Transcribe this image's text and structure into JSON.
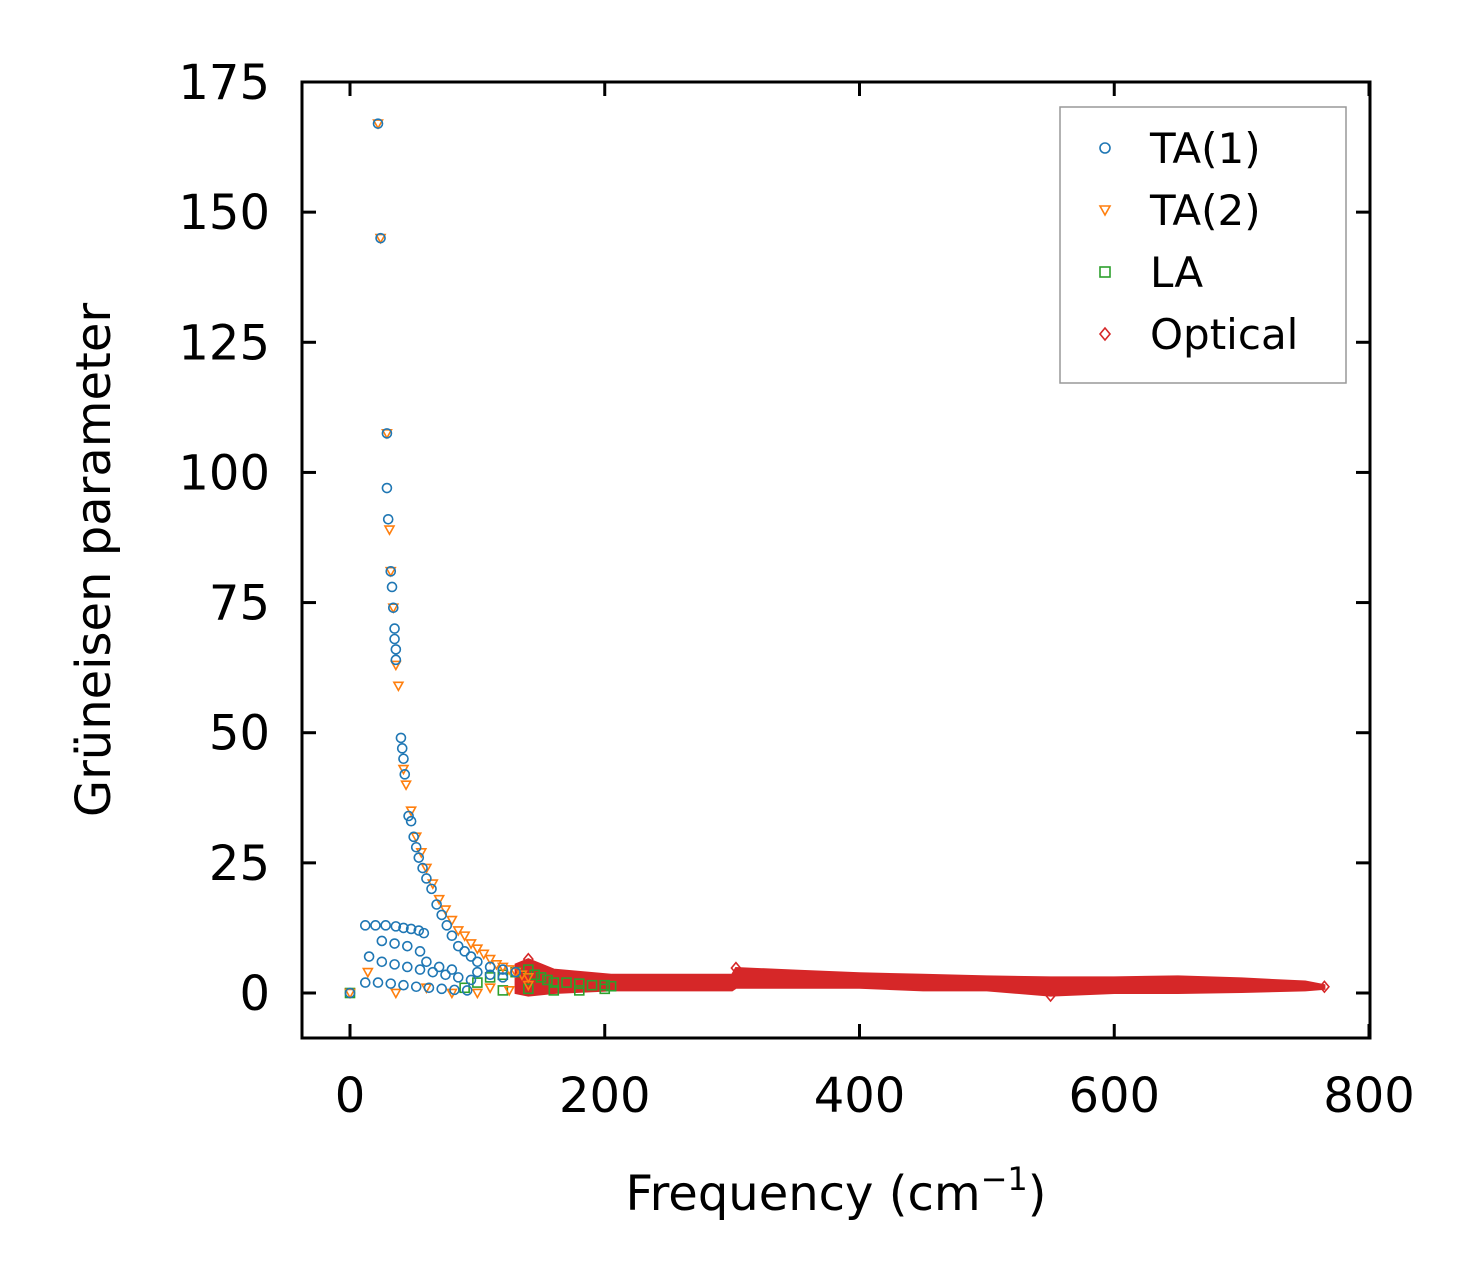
{
  "chart_data": {
    "type": "scatter",
    "title": "",
    "xlabel": "Frequency (cm",
    "xlabel_sup": "−1",
    "xlabel_end": ")",
    "ylabel": "Grüneisen parameter",
    "xlim": [
      -10,
      800
    ],
    "ylim": [
      -8.5,
      175
    ],
    "x_ticks": [
      0,
      200,
      400,
      600,
      800
    ],
    "y_ticks": [
      0,
      25,
      50,
      75,
      100,
      125,
      150,
      175
    ],
    "x_tick_labels": [
      "0",
      "200",
      "400",
      "600",
      "800"
    ],
    "y_tick_labels": [
      "0",
      "25",
      "50",
      "75",
      "100",
      "125",
      "150",
      "175"
    ],
    "grid": false,
    "legend_position": "top-right",
    "series": [
      {
        "name": "TA(1)",
        "marker": "circle",
        "color": "#1f77b4",
        "points": [
          [
            0,
            0
          ],
          [
            22,
            167
          ],
          [
            24,
            145
          ],
          [
            29,
            107.5
          ],
          [
            29,
            97
          ],
          [
            30,
            91
          ],
          [
            32,
            81
          ],
          [
            33,
            78
          ],
          [
            34,
            74
          ],
          [
            35,
            70
          ],
          [
            35,
            68
          ],
          [
            36,
            66
          ],
          [
            36,
            64
          ],
          [
            40,
            49
          ],
          [
            41,
            47
          ],
          [
            42,
            45
          ],
          [
            43,
            42
          ],
          [
            46,
            34
          ],
          [
            48,
            33
          ],
          [
            50,
            30
          ],
          [
            52,
            28
          ],
          [
            54,
            26
          ],
          [
            57,
            24
          ],
          [
            60,
            22
          ],
          [
            64,
            20
          ],
          [
            68,
            17
          ],
          [
            72,
            15
          ],
          [
            76,
            13
          ],
          [
            80,
            11
          ],
          [
            85,
            9
          ],
          [
            90,
            8
          ],
          [
            95,
            7
          ],
          [
            100,
            6
          ],
          [
            110,
            5
          ],
          [
            120,
            4.5
          ],
          [
            130,
            4
          ],
          [
            12,
            13
          ],
          [
            20,
            13
          ],
          [
            28,
            13
          ],
          [
            36,
            12.8
          ],
          [
            42,
            12.5
          ],
          [
            48,
            12.3
          ],
          [
            54,
            12
          ],
          [
            58,
            11.5
          ],
          [
            25,
            10
          ],
          [
            35,
            9.5
          ],
          [
            45,
            9
          ],
          [
            55,
            8
          ],
          [
            15,
            7
          ],
          [
            25,
            6
          ],
          [
            35,
            5.5
          ],
          [
            45,
            5
          ],
          [
            55,
            4.5
          ],
          [
            65,
            4
          ],
          [
            75,
            3.5
          ],
          [
            85,
            3
          ],
          [
            95,
            2.5
          ],
          [
            12,
            2
          ],
          [
            22,
            2
          ],
          [
            32,
            1.8
          ],
          [
            42,
            1.5
          ],
          [
            52,
            1.2
          ],
          [
            62,
            1
          ],
          [
            72,
            0.8
          ],
          [
            82,
            0.6
          ],
          [
            92,
            0.5
          ],
          [
            60,
            6
          ],
          [
            70,
            5
          ],
          [
            80,
            4.5
          ],
          [
            100,
            4
          ],
          [
            110,
            3.5
          ],
          [
            120,
            3
          ]
        ]
      },
      {
        "name": "TA(2)",
        "marker": "triangle-down",
        "color": "#ff7f0e",
        "points": [
          [
            0,
            0
          ],
          [
            22,
            167
          ],
          [
            24,
            145
          ],
          [
            29,
            107.5
          ],
          [
            31,
            89
          ],
          [
            32,
            81
          ],
          [
            34,
            74
          ],
          [
            36,
            63
          ],
          [
            38,
            59
          ],
          [
            42,
            43
          ],
          [
            44,
            40
          ],
          [
            48,
            35
          ],
          [
            52,
            30
          ],
          [
            56,
            27
          ],
          [
            60,
            24
          ],
          [
            65,
            21
          ],
          [
            70,
            18
          ],
          [
            75,
            16
          ],
          [
            80,
            14
          ],
          [
            85,
            12
          ],
          [
            90,
            11
          ],
          [
            95,
            9.5
          ],
          [
            100,
            8.5
          ],
          [
            105,
            7.5
          ],
          [
            110,
            6.5
          ],
          [
            115,
            5.5
          ],
          [
            120,
            5
          ],
          [
            125,
            4.5
          ],
          [
            130,
            4
          ],
          [
            135,
            3.5
          ],
          [
            140,
            3
          ],
          [
            14,
            4
          ],
          [
            36,
            0
          ],
          [
            60,
            1
          ],
          [
            80,
            0
          ],
          [
            100,
            0
          ],
          [
            110,
            1
          ],
          [
            125,
            0.5
          ],
          [
            140,
            1.5
          ]
        ]
      },
      {
        "name": "LA",
        "marker": "square",
        "color": "#2ca02c",
        "points": [
          [
            0,
            0
          ],
          [
            90,
            1
          ],
          [
            100,
            2
          ],
          [
            110,
            3
          ],
          [
            120,
            3.5
          ],
          [
            130,
            4
          ],
          [
            140,
            4.5
          ],
          [
            145,
            3.5
          ],
          [
            150,
            3
          ],
          [
            155,
            2.5
          ],
          [
            160,
            2
          ],
          [
            170,
            2
          ],
          [
            180,
            1.8
          ],
          [
            190,
            1.5
          ],
          [
            200,
            1.5
          ],
          [
            205,
            1.3
          ],
          [
            120,
            0.5
          ],
          [
            140,
            0.8
          ],
          [
            160,
            0.5
          ],
          [
            180,
            0.5
          ],
          [
            200,
            0.8
          ]
        ]
      },
      {
        "name": "Optical",
        "marker": "diamond",
        "color": "#d62728",
        "band": [
          [
            130,
            0.0,
            5.5
          ],
          [
            140,
            -0.5,
            6.5
          ],
          [
            160,
            0.0,
            4.5
          ],
          [
            205,
            0.5,
            3.5
          ],
          [
            250,
            0.5,
            3.5
          ],
          [
            300,
            0.5,
            3.5
          ],
          [
            303,
            1.0,
            4.8
          ],
          [
            350,
            1.0,
            4.3
          ],
          [
            400,
            1.0,
            3.8
          ],
          [
            450,
            0.5,
            3.5
          ],
          [
            500,
            0.5,
            3.2
          ],
          [
            550,
            -0.5,
            3.0
          ],
          [
            600,
            0.0,
            3.0
          ],
          [
            650,
            0.0,
            3.2
          ],
          [
            700,
            0.2,
            2.8
          ],
          [
            750,
            0.5,
            2.2
          ],
          [
            765,
            0.8,
            1.5
          ]
        ],
        "points": [
          [
            140,
            6.5
          ],
          [
            303,
            4.8
          ],
          [
            550,
            -0.5
          ],
          [
            765,
            1.2
          ]
        ]
      }
    ]
  }
}
